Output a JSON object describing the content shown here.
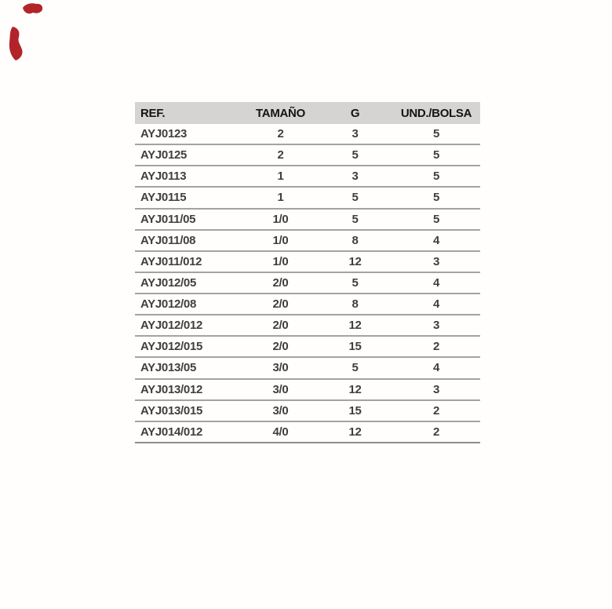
{
  "page": {
    "background_color": "#fffefc"
  },
  "logo": {
    "name": "red-logo-fragment",
    "color": "#b2242a"
  },
  "table": {
    "header_bg_color": "#d5d4d2",
    "header_text_color": "#141414",
    "cell_text_color": "#403f3d",
    "separator_color": "#a5a3a0",
    "headers": [
      {
        "key": "ref",
        "label": "REF."
      },
      {
        "key": "tamano",
        "label": "TAMAÑO"
      },
      {
        "key": "g",
        "label": "G"
      },
      {
        "key": "und_bolsa",
        "label": "UND./BOLSA"
      }
    ],
    "rows": [
      {
        "ref": "AYJ0123",
        "tamano": "2",
        "g": "3",
        "und_bolsa": "5"
      },
      {
        "ref": "AYJ0125",
        "tamano": "2",
        "g": "5",
        "und_bolsa": "5"
      },
      {
        "ref": "AYJ0113",
        "tamano": "1",
        "g": "3",
        "und_bolsa": "5"
      },
      {
        "ref": "AYJ0115",
        "tamano": "1",
        "g": "5",
        "und_bolsa": "5"
      },
      {
        "ref": "AYJ011/05",
        "tamano": "1/0",
        "g": "5",
        "und_bolsa": "5"
      },
      {
        "ref": "AYJ011/08",
        "tamano": "1/0",
        "g": "8",
        "und_bolsa": "4"
      },
      {
        "ref": "AYJ011/012",
        "tamano": "1/0",
        "g": "12",
        "und_bolsa": "3"
      },
      {
        "ref": "AYJ012/05",
        "tamano": "2/0",
        "g": "5",
        "und_bolsa": "4"
      },
      {
        "ref": "AYJ012/08",
        "tamano": "2/0",
        "g": "8",
        "und_bolsa": "4"
      },
      {
        "ref": "AYJ012/012",
        "tamano": "2/0",
        "g": "12",
        "und_bolsa": "3"
      },
      {
        "ref": "AYJ012/015",
        "tamano": "2/0",
        "g": "15",
        "und_bolsa": "2"
      },
      {
        "ref": "AYJ013/05",
        "tamano": "3/0",
        "g": "5",
        "und_bolsa": "4"
      },
      {
        "ref": "AYJ013/012",
        "tamano": "3/0",
        "g": "12",
        "und_bolsa": "3"
      },
      {
        "ref": "AYJ013/015",
        "tamano": "3/0",
        "g": "15",
        "und_bolsa": "2"
      },
      {
        "ref": "AYJ014/012",
        "tamano": "4/0",
        "g": "12",
        "und_bolsa": "2"
      }
    ]
  }
}
